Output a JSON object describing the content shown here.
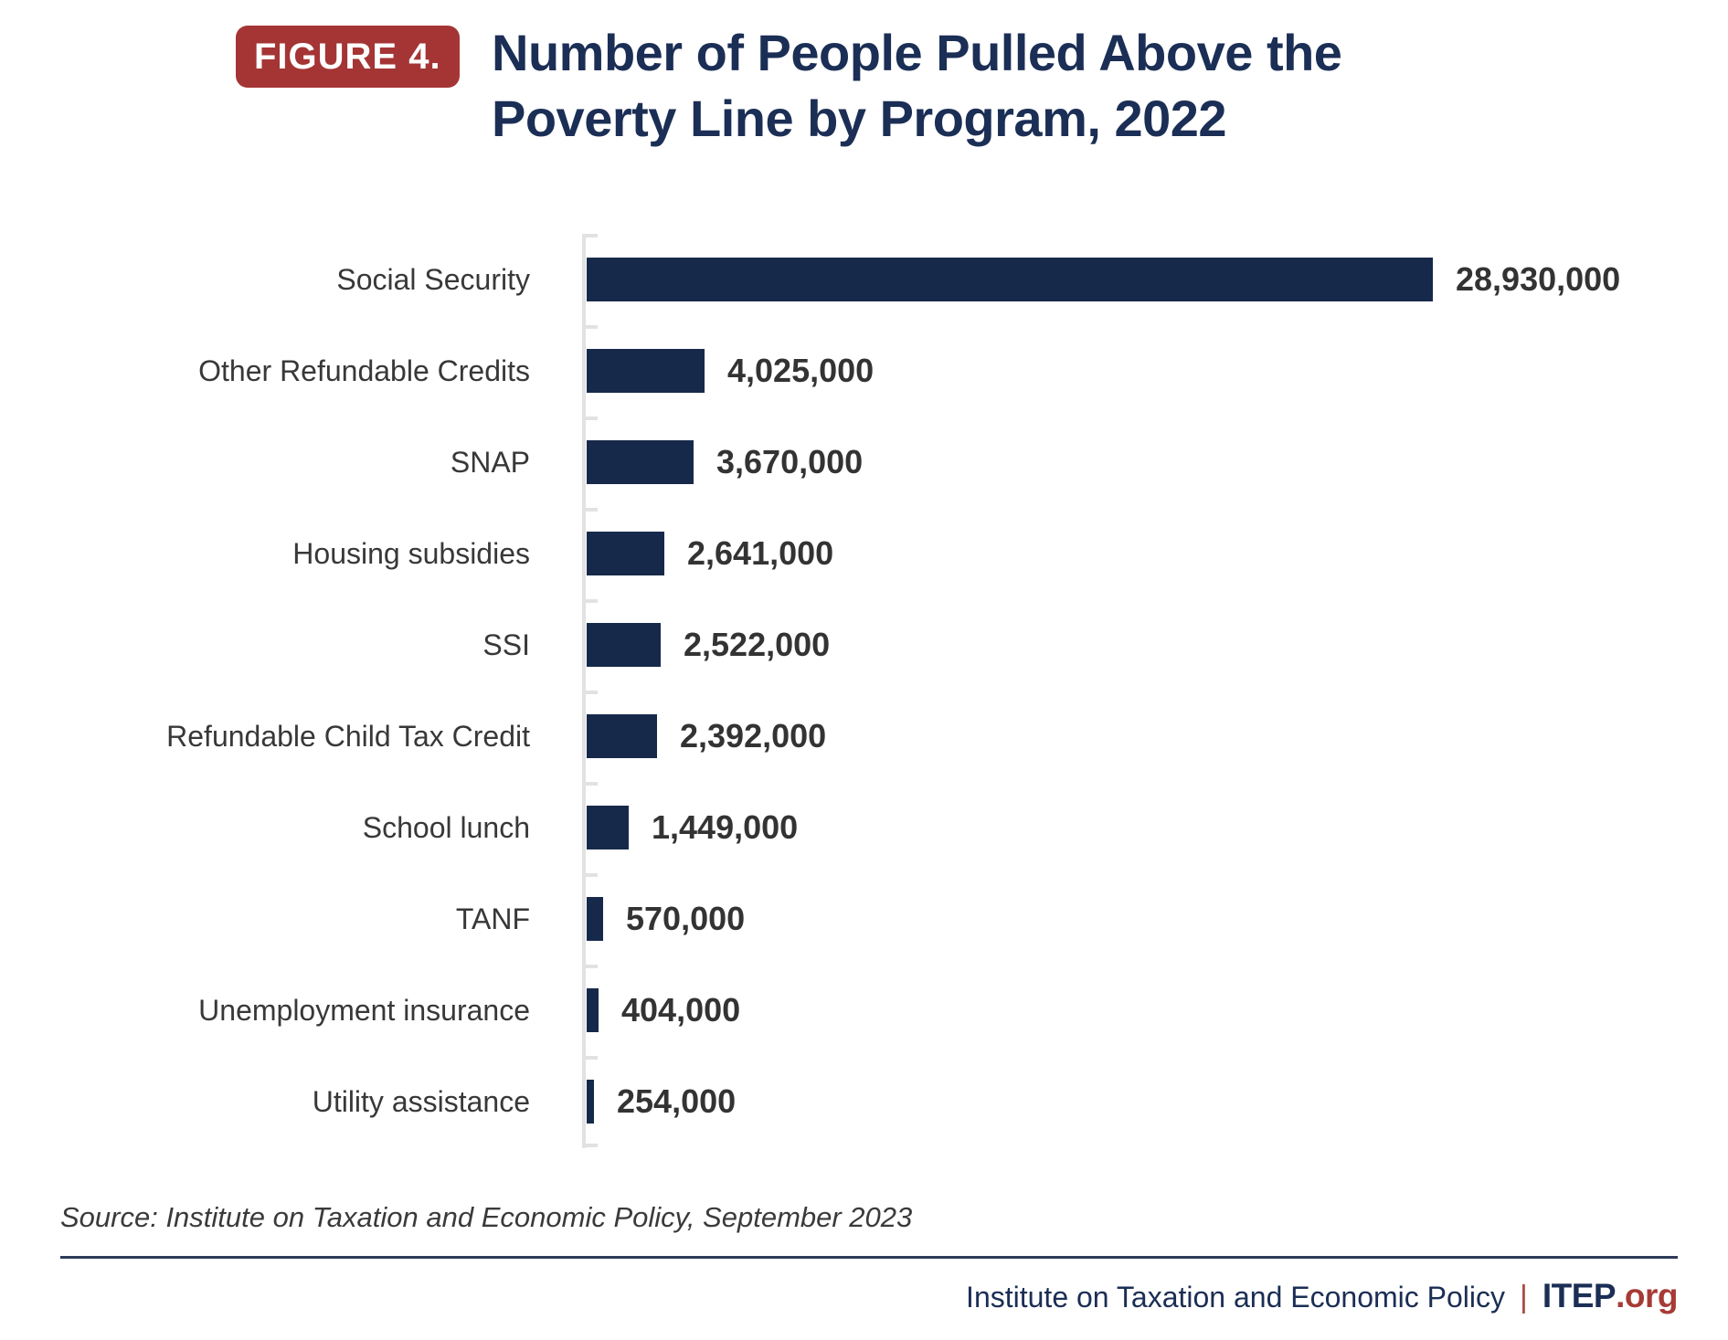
{
  "figure": {
    "badge_label": "FIGURE 4.",
    "title_line1": "Number of People Pulled Above the",
    "title_line2": "Poverty Line by Program, 2022"
  },
  "chart_data": {
    "type": "bar",
    "orientation": "horizontal",
    "title": "Number of People Pulled Above the Poverty Line by Program, 2022",
    "xlabel": "",
    "ylabel": "",
    "xlim": [
      0,
      29500000
    ],
    "grid": false,
    "legend": "none",
    "bar_color": "#17294a",
    "axis_color": "#e2e2e2",
    "categories": [
      "Social Security",
      "Other Refundable Credits",
      "SNAP",
      "Housing subsidies",
      "SSI",
      "Refundable Child Tax Credit",
      "School lunch",
      "TANF",
      "Unemployment insurance",
      "Utility assistance"
    ],
    "values": [
      28930000,
      4025000,
      3670000,
      2641000,
      2522000,
      2392000,
      1449000,
      570000,
      404000,
      254000
    ],
    "value_labels": [
      "28,930,000",
      "4,025,000",
      "3,670,000",
      "2,641,000",
      "2,522,000",
      "2,392,000",
      "1,449,000",
      "570,000",
      "404,000",
      "254,000"
    ]
  },
  "source_note": "Source: Institute on Taxation and Economic Policy, September 2023",
  "footer": {
    "org_name": "Institute on Taxation and Economic Policy",
    "separator": "|",
    "brand": "ITEP",
    "brand_suffix": ".org"
  },
  "colors": {
    "bar_navy": "#17294a",
    "title_navy": "#1b2e55",
    "badge_red": "#a43534",
    "accent_red": "#a63b35",
    "axis_gray": "#e2e2e2",
    "divider_navy": "#2b3b58"
  }
}
